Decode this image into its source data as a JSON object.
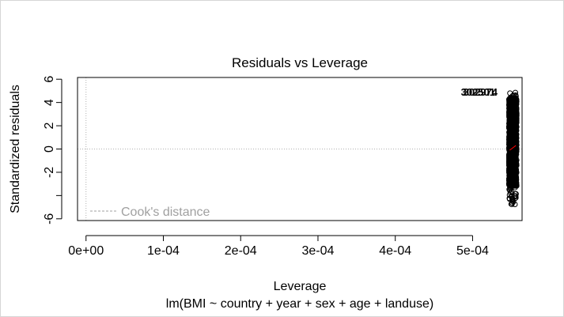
{
  "chart_data": {
    "type": "scatter",
    "title": "Residuals vs Leverage",
    "xlabel": "Leverage",
    "subtitle": "lm(BMI ~ country + year + sex + age + landuse)",
    "ylabel": "Standardized residuals",
    "xlim": [
      -1.1e-05,
      0.000564
    ],
    "ylim": [
      -6.15,
      6.15
    ],
    "x_ticks": [
      0,
      0.0001,
      0.0002,
      0.0003,
      0.0004,
      0.0005
    ],
    "x_tick_labels": [
      "0e+00",
      "1e-04",
      "2e-04",
      "3e-04",
      "4e-04",
      "5e-04"
    ],
    "y_ticks": [
      -6,
      -4,
      -2,
      0,
      2,
      4,
      6
    ],
    "y_tick_labels": [
      "-6",
      "",
      "-2",
      "0",
      "2",
      "4",
      "6"
    ],
    "reference_lines": {
      "h": 0,
      "v": 0,
      "style": "dotted"
    },
    "legend": {
      "position": "bottom-left",
      "label": "Cook's distance",
      "line_style": "dashed"
    },
    "points": {
      "x_range": [
        0.000547,
        0.000557
      ],
      "y_range": [
        -4.8,
        4.9
      ],
      "style": "open circles, dense band"
    },
    "labeled_points": [
      "302974",
      "302501"
    ],
    "smoother": {
      "color": "#ff0000",
      "x": [
        0.000548,
        0.000556
      ],
      "y": [
        -0.1,
        0.3
      ]
    }
  }
}
